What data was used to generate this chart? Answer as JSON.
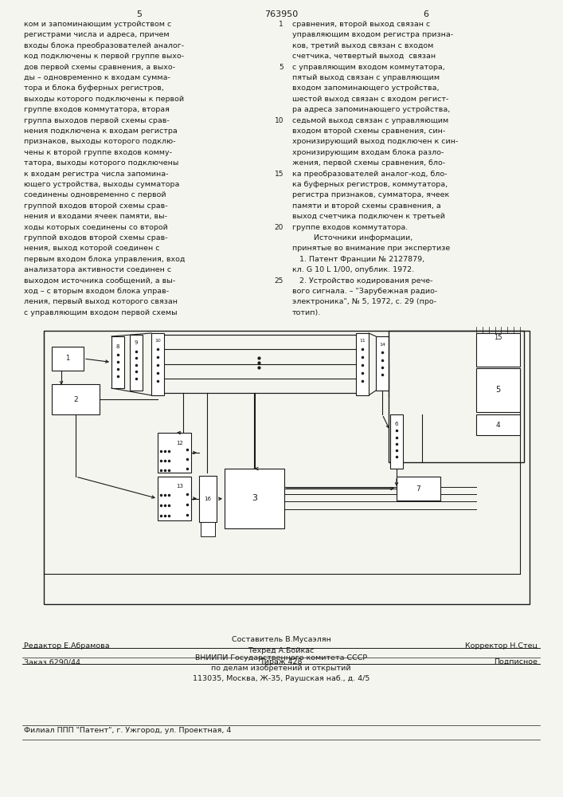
{
  "page_number_left": "5",
  "page_number_center": "763950",
  "page_number_right": "6",
  "bg_color": "#f5f5f0",
  "text_color": "#1a1a1a",
  "left_column_text": [
    "ком и запоминающим устройством с",
    "регистрами числа и адреса, причем",
    "входы блока преобразователей аналог-",
    "код подключены к первой группе выхо-",
    "дов первой схемы сравнения, а выхо-",
    "ды – одновременно к входам сумма-",
    "тора и блока буферных регистров,",
    "выходы которого подключены к первой",
    "группе входов коммутатора, вторая",
    "группа выходов первой схемы срав-",
    "нения подключена к входам регистра",
    "признаков, выходы которого подклю-",
    "чены к второй группе входов комму-",
    "татора, выходы которого подключены",
    "к входам регистра числа запомина-",
    "ющего устройства, выходы сумматора",
    "соединены одновременно с первой",
    "группой входов второй схемы срав-",
    "нения и входами ячеек памяти, вы-",
    "ходы которых соединены со второй",
    "группой входов второй схемы срав-",
    "нения, выход которой соединен с",
    "первым входом блока управления, вход",
    "анализатора активности соединен с",
    "выходом источника сообщений, а вы-",
    "ход – с вторым входом блока управ-",
    "ления, первый выход которого связан",
    "с управляющим входом первой схемы"
  ],
  "right_column_text": [
    "сравнения, второй выход связан с",
    "управляющим входом регистра призна-",
    "ков, третий выход связан с входом",
    "счетчика, четвертый выход  связан",
    "с управляющим входом коммутатора,",
    "пятый выход связан с управляющим",
    "входом запоминающего устройства,",
    "шестой выход связан с входом регист-",
    "ра адреса запоминающего устройства,",
    "седьмой выход связан с управляющим",
    "входом второй схемы сравнения, син-",
    "хронизирующий выход подключен к син-",
    "хронизирующим входам блока разло-",
    "жения, первой схемы сравнения, бло-",
    "ка преобразователей аналог-код, бло-",
    "ка буферных регистров, коммутатора,",
    "регистра признаков, сумматора, ячеек",
    "памяти и второй схемы сравнения, а",
    "выход счетчика подключен к третьей",
    "группе входов коммутатора.",
    "         Источники информации,",
    "принятые во внимание при экспертизе",
    "   1. Патент Франции № 2127879,",
    "кл. G 10 L 1/00, опублик. 1972.",
    "   2. Устройство кодирования рече-",
    "вого сигнала. – \"Зарубежная радио-",
    "электроника\", № 5, 1972, с. 29 (про-",
    "тотип)."
  ],
  "line_number_indices": [
    0,
    4,
    9,
    14,
    19,
    24
  ],
  "line_number_values": [
    "1",
    "5",
    "10",
    "15",
    "20",
    "25"
  ],
  "footer_editor": "Редактор Е.Абрамова",
  "footer_composer": "Составитель В.Мусаэлян",
  "footer_tech": "Техред А.Бойкас",
  "footer_corrector": "Корректор Н.Стец",
  "footer_order": "Заказ 6290/44",
  "footer_circulation": "Тираж 428",
  "footer_subscription": "Подписное",
  "footer_org1": "ВНИИПИ Государственного комитета СССР",
  "footer_org2": "по делам изобретений и открытий",
  "footer_address": "113035, Москва, Ж-35, Раушская наб., д. 4/5",
  "footer_branch": "Филиал ППП \"Патент\", г. Ужгород, ул. Проектная, 4"
}
